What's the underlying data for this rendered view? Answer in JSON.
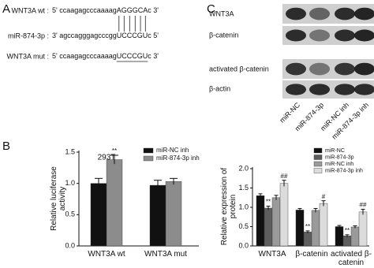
{
  "panel_labels": [
    "A",
    "B",
    "C"
  ],
  "sequences": [
    {
      "name": "WNT3A wt :",
      "prefix": "5' ccaagagcccaaaag",
      "site": "AGGGCA",
      "suffix": "c 3'"
    },
    {
      "name": "miR-874-3p :",
      "prefix": "3' agccagggagcccgg",
      "site": "UCCCGU",
      "suffix": "c 5'"
    },
    {
      "name": "WNT3A mut :",
      "prefix": "5' ccaagagcccaaaag",
      "site": "UCCCGU",
      "suffix": "c 3'"
    }
  ],
  "blot": {
    "proteins": [
      "WNT3A",
      "β-catenin",
      "activated β-catenin",
      "β-actin"
    ],
    "lanes": [
      "miR-NC",
      "miR-874-3p",
      "miR-NC inh",
      "miR-874-3p inh"
    ]
  },
  "chart_data": [
    {
      "type": "bar",
      "title": "293T",
      "y_label": "Relative luciferase activity",
      "categories": [
        "WNT3A wt",
        "WNT3A mut"
      ],
      "series": [
        {
          "name": "miR-NC inh",
          "color": "#111111",
          "values": [
            1.0,
            0.97
          ],
          "errors": [
            0.08,
            0.08
          ]
        },
        {
          "name": "miR-874-3p inh",
          "color": "#8c8c8c",
          "values": [
            1.38,
            1.03
          ],
          "errors": [
            0.07,
            0.05
          ],
          "annotations": [
            "**",
            null
          ]
        }
      ],
      "ylim": [
        0,
        1.5
      ],
      "yticks": [
        {
          "value": 0,
          "label": "0.0"
        },
        0.5,
        {
          "value": 1,
          "label": "1.0"
        },
        1.5
      ]
    },
    {
      "type": "bar",
      "y_label": "Relative expression of protein",
      "categories": [
        "WNT3A",
        "β-catenin",
        "activated β-catenin"
      ],
      "series": [
        {
          "name": "miR-NC",
          "color": "#111111",
          "values": [
            1.3,
            0.93,
            0.5
          ],
          "errors": [
            0.05,
            0.04,
            0.03
          ]
        },
        {
          "name": "miR-874-3p",
          "color": "#5e5e5e",
          "values": [
            0.98,
            0.36,
            0.26
          ],
          "errors": [
            0.05,
            0.03,
            0.03
          ],
          "annotations": [
            "**",
            "**",
            "**"
          ]
        },
        {
          "name": "miR-NC inh",
          "color": "#9a9a9a",
          "values": [
            1.25,
            0.92,
            0.49
          ],
          "errors": [
            0.06,
            0.05,
            0.03
          ]
        },
        {
          "name": "miR-874-3p inh",
          "color": "#dcdcdc",
          "values": [
            1.62,
            1.1,
            0.88
          ],
          "errors": [
            0.08,
            0.07,
            0.07
          ],
          "annotations": [
            "##",
            "#",
            "##"
          ]
        }
      ],
      "ylim": [
        0,
        2
      ],
      "yticks": [
        {
          "value": 0,
          "label": "0.0"
        },
        0.5,
        {
          "value": 1,
          "label": "1.0"
        },
        1.5,
        {
          "value": 2,
          "label": "2.0"
        }
      ]
    }
  ]
}
